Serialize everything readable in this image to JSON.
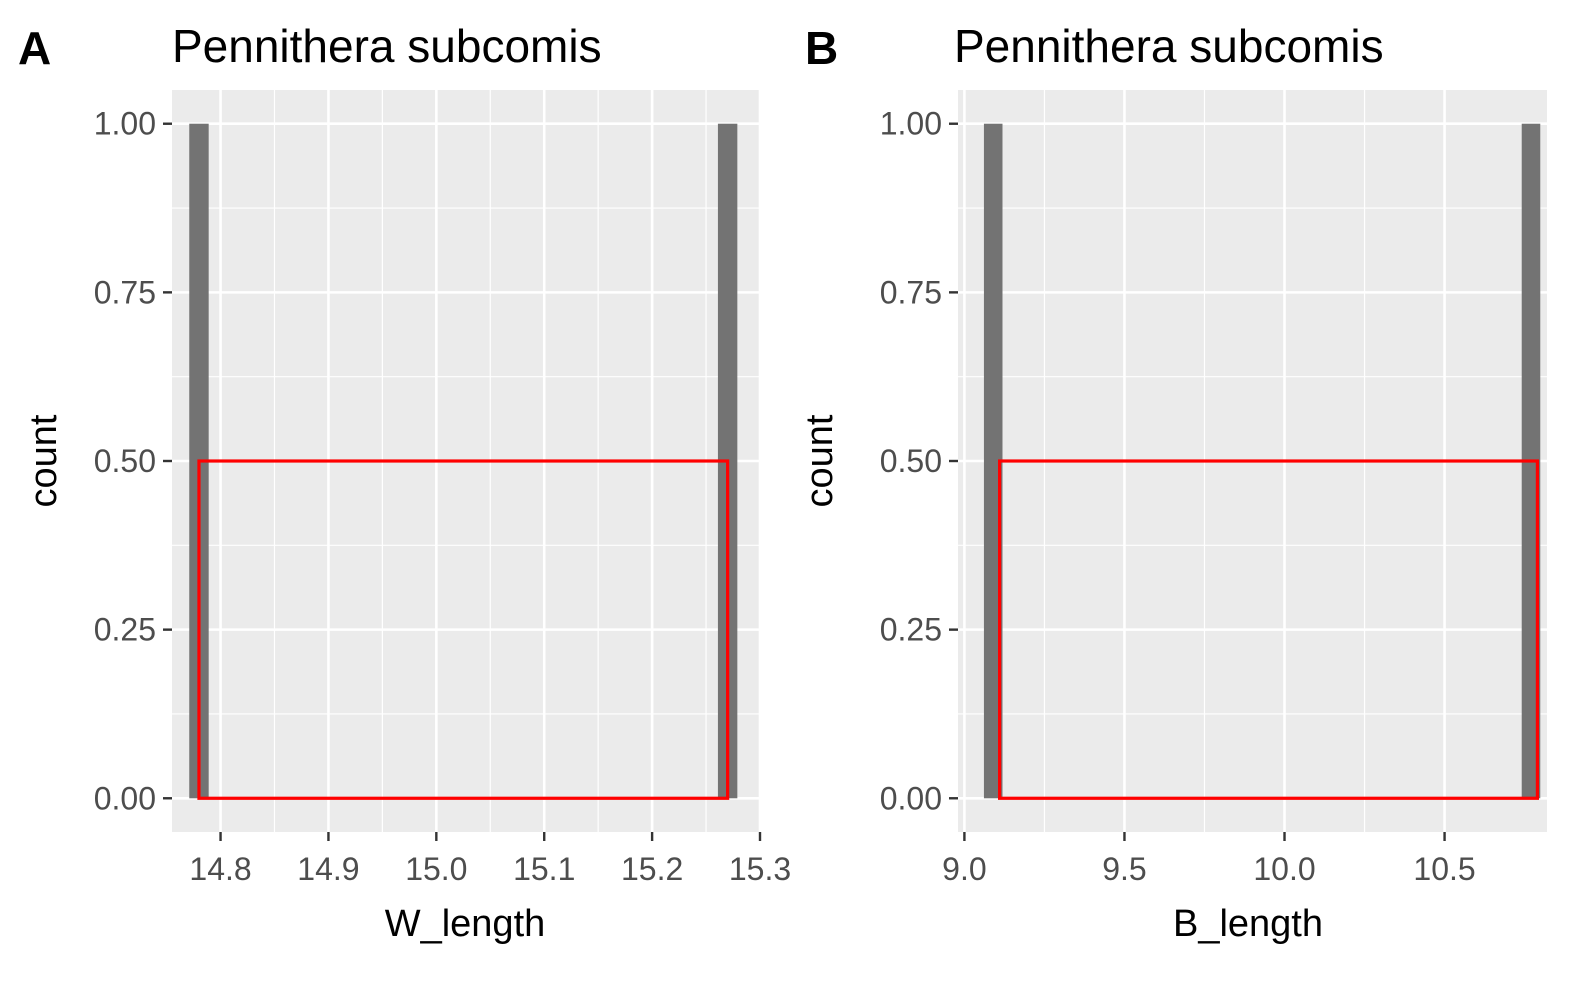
{
  "colors": {
    "panel_background": "#ebebeb",
    "grid_major": "#ffffff",
    "bar_fill": "#737373",
    "highlight_box": "#ff0000",
    "tick_text": "#4d4d4d",
    "tick_mark": "#333333"
  },
  "chart_data": [
    {
      "type": "bar",
      "panel_tag": "A",
      "title": "Pennithera subcomis",
      "xlabel": "W_length",
      "ylabel": "count",
      "xlim": [
        14.755,
        15.3
      ],
      "ylim": [
        -0.05,
        1.05
      ],
      "x_ticks": [
        14.8,
        14.9,
        15.0,
        15.1,
        15.2,
        15.3
      ],
      "x_tick_labels": [
        "14.8",
        "14.9",
        "15.0",
        "15.1",
        "15.2",
        "15.3"
      ],
      "y_ticks": [
        0,
        0.25,
        0.5,
        0.75,
        1.0
      ],
      "y_tick_labels": [
        "0.00",
        "0.25",
        "0.50",
        "0.75",
        "1.00"
      ],
      "grid": true,
      "bars": [
        {
          "x": 14.78,
          "count": 1
        },
        {
          "x": 15.27,
          "count": 1
        }
      ],
      "bar_width": 0.018,
      "highlight_rect": {
        "xmin": 14.78,
        "xmax": 15.27,
        "ymin": 0,
        "ymax": 0.5
      }
    },
    {
      "type": "bar",
      "panel_tag": "B",
      "title": "Pennithera subcomis",
      "xlabel": "B_length",
      "ylabel": "count",
      "xlim": [
        8.98,
        10.82
      ],
      "ylim": [
        -0.05,
        1.05
      ],
      "x_ticks": [
        9.0,
        9.5,
        10.0,
        10.5
      ],
      "x_tick_labels": [
        "9.0",
        "9.5",
        "10.0",
        "10.5"
      ],
      "y_ticks": [
        0,
        0.25,
        0.5,
        0.75,
        1.0
      ],
      "y_tick_labels": [
        "0.00",
        "0.25",
        "0.50",
        "0.75",
        "1.00"
      ],
      "grid": true,
      "bars": [
        {
          "x": 9.09,
          "count": 1
        },
        {
          "x": 10.77,
          "count": 1
        }
      ],
      "bar_width": 0.058,
      "highlight_rect": {
        "xmin": 9.11,
        "xmax": 10.79,
        "ymin": 0,
        "ymax": 0.5
      }
    }
  ]
}
